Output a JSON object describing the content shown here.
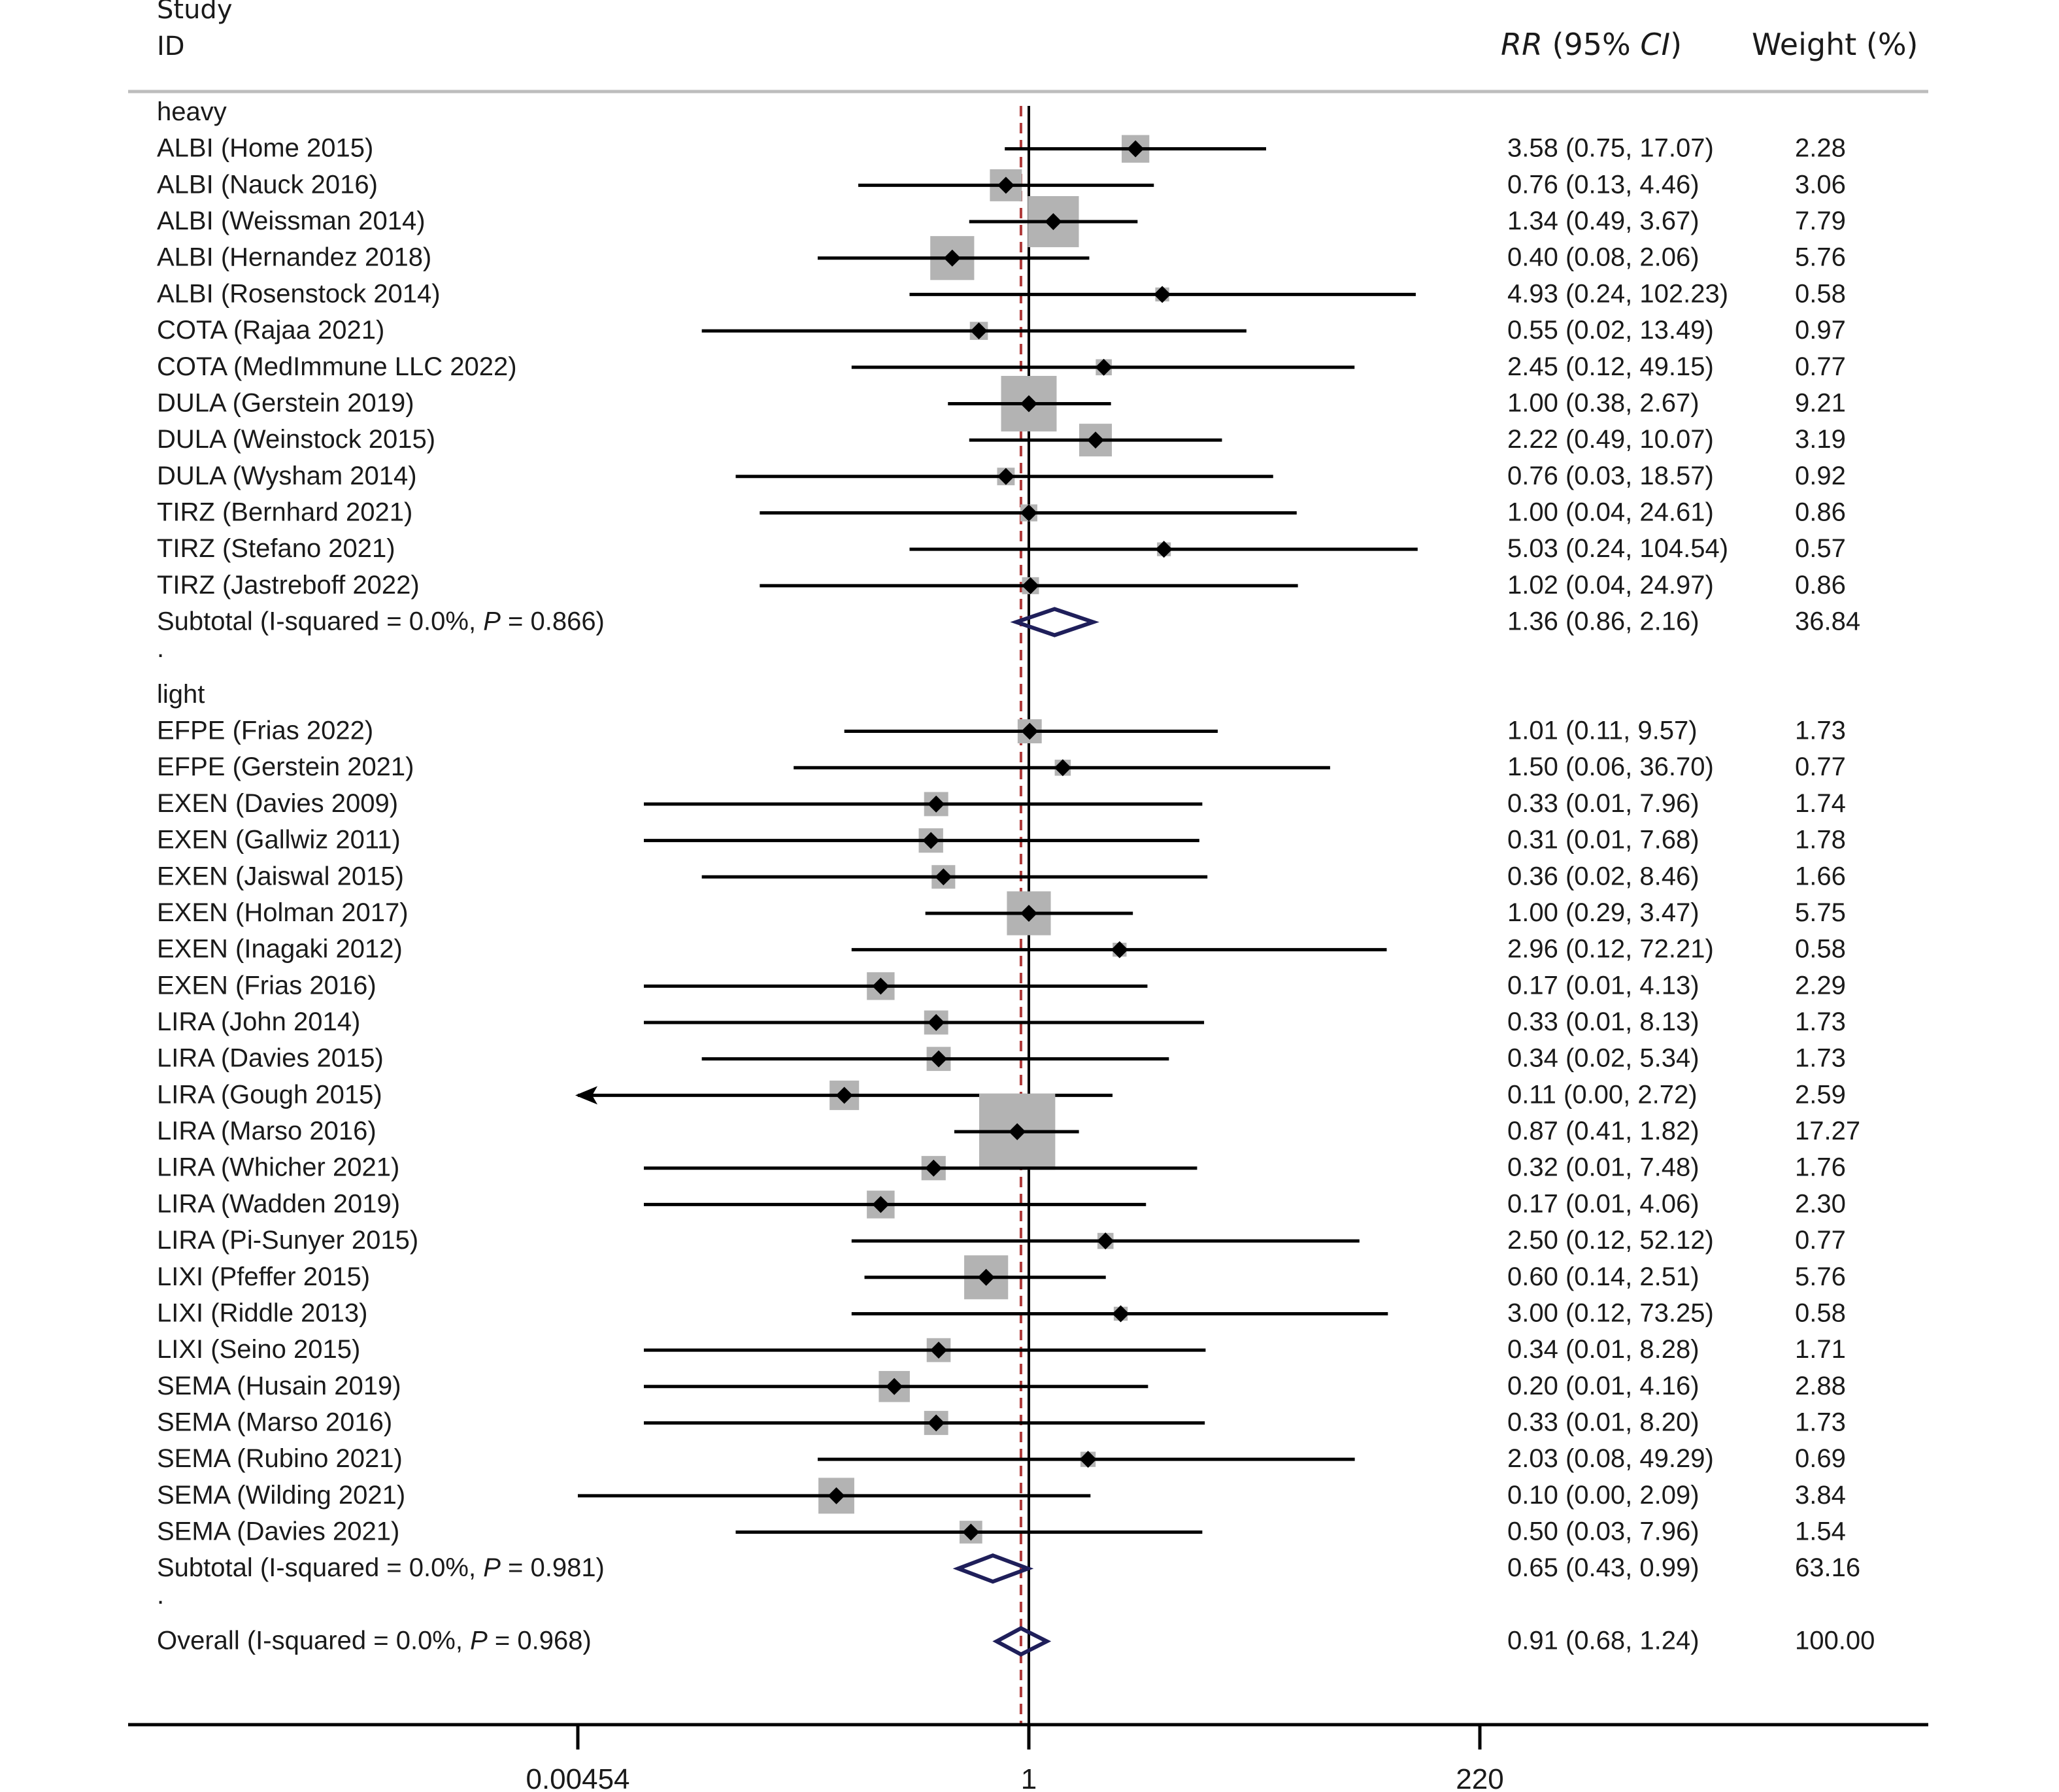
{
  "header": {
    "study": "Study",
    "id": "ID",
    "rr_label": "RR",
    "ci_open": " (95% ",
    "ci_label": "CI",
    "ci_close": ")",
    "weight_label": "Weight (%)"
  },
  "colors": {
    "box": "#b3b3b3",
    "diamond": "#1f1f5a",
    "null_line": "#000000",
    "overall_line": "#b03a3a",
    "text": "#1a1a1a"
  },
  "chart_data": {
    "type": "forest",
    "x_scale": "log",
    "xlim": [
      0.00454,
      220
    ],
    "xticks": [
      0.00454,
      1,
      220
    ],
    "xtick_labels": [
      "0.00454",
      "1",
      "220"
    ],
    "null_value": 1,
    "overall_effect": 0.91,
    "rows": [
      {
        "kind": "group",
        "label": "heavy"
      },
      {
        "kind": "study",
        "label": "ALBI (Home 2015)",
        "rr": 3.58,
        "lo": 0.75,
        "hi": 17.07,
        "ci": "3.58 (0.75, 17.07)",
        "weight": 2.28,
        "wtext": "2.28"
      },
      {
        "kind": "study",
        "label": "ALBI (Nauck 2016)",
        "rr": 0.76,
        "lo": 0.13,
        "hi": 4.46,
        "ci": "0.76 (0.13, 4.46)",
        "weight": 3.06,
        "wtext": "3.06"
      },
      {
        "kind": "study",
        "label": "ALBI (Weissman 2014)",
        "rr": 1.34,
        "lo": 0.49,
        "hi": 3.67,
        "ci": "1.34 (0.49, 3.67)",
        "weight": 7.79,
        "wtext": "7.79"
      },
      {
        "kind": "study",
        "label": "ALBI (Hernandez 2018)",
        "rr": 0.4,
        "lo": 0.08,
        "hi": 2.06,
        "ci": "0.40 (0.08, 2.06)",
        "weight": 5.76,
        "wtext": "5.76"
      },
      {
        "kind": "study",
        "label": "ALBI (Rosenstock 2014)",
        "rr": 4.93,
        "lo": 0.24,
        "hi": 102.23,
        "ci": "4.93 (0.24, 102.23)",
        "weight": 0.58,
        "wtext": "0.58"
      },
      {
        "kind": "study",
        "label": "COTA (Rajaa 2021)",
        "rr": 0.55,
        "lo": 0.02,
        "hi": 13.49,
        "ci": "0.55 (0.02, 13.49)",
        "weight": 0.97,
        "wtext": "0.97"
      },
      {
        "kind": "study",
        "label": "COTA (MedImmune LLC 2022)",
        "rr": 2.45,
        "lo": 0.12,
        "hi": 49.15,
        "ci": "2.45 (0.12, 49.15)",
        "weight": 0.77,
        "wtext": "0.77"
      },
      {
        "kind": "study",
        "label": "DULA (Gerstein 2019)",
        "rr": 1.0,
        "lo": 0.38,
        "hi": 2.67,
        "ci": "1.00 (0.38, 2.67)",
        "weight": 9.21,
        "wtext": "9.21"
      },
      {
        "kind": "study",
        "label": "DULA (Weinstock 2015)",
        "rr": 2.22,
        "lo": 0.49,
        "hi": 10.07,
        "ci": "2.22 (0.49, 10.07)",
        "weight": 3.19,
        "wtext": "3.19"
      },
      {
        "kind": "study",
        "label": "DULA (Wysham 2014)",
        "rr": 0.76,
        "lo": 0.03,
        "hi": 18.57,
        "ci": "0.76 (0.03, 18.57)",
        "weight": 0.92,
        "wtext": "0.92"
      },
      {
        "kind": "study",
        "label": "TIRZ (Bernhard 2021)",
        "rr": 1.0,
        "lo": 0.04,
        "hi": 24.61,
        "ci": "1.00 (0.04, 24.61)",
        "weight": 0.86,
        "wtext": "0.86"
      },
      {
        "kind": "study",
        "label": "TIRZ (Stefano 2021)",
        "rr": 5.03,
        "lo": 0.24,
        "hi": 104.54,
        "ci": "5.03 (0.24, 104.54)",
        "weight": 0.57,
        "wtext": "0.57"
      },
      {
        "kind": "study",
        "label": "TIRZ (Jastreboff 2022)",
        "rr": 1.02,
        "lo": 0.04,
        "hi": 24.97,
        "ci": "1.02 (0.04, 24.97)",
        "weight": 0.86,
        "wtext": "0.86"
      },
      {
        "kind": "subtotal",
        "label": "Subtotal  (I-squared = 0.0%, ",
        "pval": "P",
        "ptext": " = 0.866)",
        "rr": 1.36,
        "lo": 0.86,
        "hi": 2.16,
        "ci": "1.36 (0.86, 2.16)",
        "weight": 36.84,
        "wtext": "36.84"
      },
      {
        "kind": "sep",
        "label": "."
      },
      {
        "kind": "group",
        "label": "light"
      },
      {
        "kind": "study",
        "label": "EFPE (Frias 2022)",
        "rr": 1.01,
        "lo": 0.11,
        "hi": 9.57,
        "ci": "1.01 (0.11, 9.57)",
        "weight": 1.73,
        "wtext": "1.73"
      },
      {
        "kind": "study",
        "label": "EFPE (Gerstein 2021)",
        "rr": 1.5,
        "lo": 0.06,
        "hi": 36.7,
        "ci": "1.50 (0.06, 36.70)",
        "weight": 0.77,
        "wtext": "0.77"
      },
      {
        "kind": "study",
        "label": "EXEN (Davies 2009)",
        "rr": 0.33,
        "lo": 0.01,
        "hi": 7.96,
        "ci": "0.33 (0.01, 7.96)",
        "weight": 1.74,
        "wtext": "1.74"
      },
      {
        "kind": "study",
        "label": "EXEN (Gallwiz 2011)",
        "rr": 0.31,
        "lo": 0.01,
        "hi": 7.68,
        "ci": "0.31 (0.01, 7.68)",
        "weight": 1.78,
        "wtext": "1.78"
      },
      {
        "kind": "study",
        "label": "EXEN (Jaiswal 2015)",
        "rr": 0.36,
        "lo": 0.02,
        "hi": 8.46,
        "ci": "0.36 (0.02, 8.46)",
        "weight": 1.66,
        "wtext": "1.66"
      },
      {
        "kind": "study",
        "label": "EXEN (Holman 2017)",
        "rr": 1.0,
        "lo": 0.29,
        "hi": 3.47,
        "ci": "1.00 (0.29, 3.47)",
        "weight": 5.75,
        "wtext": "5.75"
      },
      {
        "kind": "study",
        "label": "EXEN (Inagaki 2012)",
        "rr": 2.96,
        "lo": 0.12,
        "hi": 72.21,
        "ci": "2.96 (0.12, 72.21)",
        "weight": 0.58,
        "wtext": "0.58"
      },
      {
        "kind": "study",
        "label": "EXEN (Frias 2016)",
        "rr": 0.17,
        "lo": 0.01,
        "hi": 4.13,
        "ci": "0.17 (0.01, 4.13)",
        "weight": 2.29,
        "wtext": "2.29"
      },
      {
        "kind": "study",
        "label": "LIRA (John 2014)",
        "rr": 0.33,
        "lo": 0.01,
        "hi": 8.13,
        "ci": "0.33 (0.01, 8.13)",
        "weight": 1.73,
        "wtext": "1.73"
      },
      {
        "kind": "study",
        "label": "LIRA (Davies 2015)",
        "rr": 0.34,
        "lo": 0.02,
        "hi": 5.34,
        "ci": "0.34 (0.02, 5.34)",
        "weight": 1.73,
        "wtext": "1.73"
      },
      {
        "kind": "study",
        "label": "LIRA (Gough 2015)",
        "rr": 0.11,
        "lo": 0.0,
        "hi": 2.72,
        "ci": "0.11 (0.00, 2.72)",
        "weight": 2.59,
        "wtext": "2.59",
        "arrow_left": true
      },
      {
        "kind": "study",
        "label": "LIRA (Marso 2016)",
        "rr": 0.87,
        "lo": 0.41,
        "hi": 1.82,
        "ci": "0.87 (0.41, 1.82)",
        "weight": 17.27,
        "wtext": "17.27"
      },
      {
        "kind": "study",
        "label": "LIRA (Whicher 2021)",
        "rr": 0.32,
        "lo": 0.01,
        "hi": 7.48,
        "ci": "0.32 (0.01, 7.48)",
        "weight": 1.76,
        "wtext": "1.76"
      },
      {
        "kind": "study",
        "label": "LIRA (Wadden 2019)",
        "rr": 0.17,
        "lo": 0.01,
        "hi": 4.06,
        "ci": "0.17 (0.01, 4.06)",
        "weight": 2.3,
        "wtext": "2.30"
      },
      {
        "kind": "study",
        "label": "LIRA (Pi-Sunyer 2015)",
        "rr": 2.5,
        "lo": 0.12,
        "hi": 52.12,
        "ci": "2.50 (0.12, 52.12)",
        "weight": 0.77,
        "wtext": "0.77"
      },
      {
        "kind": "study",
        "label": "LIXI (Pfeffer 2015)",
        "rr": 0.6,
        "lo": 0.14,
        "hi": 2.51,
        "ci": "0.60 (0.14, 2.51)",
        "weight": 5.76,
        "wtext": "5.76"
      },
      {
        "kind": "study",
        "label": "LIXI (Riddle 2013)",
        "rr": 3.0,
        "lo": 0.12,
        "hi": 73.25,
        "ci": "3.00 (0.12, 73.25)",
        "weight": 0.58,
        "wtext": "0.58"
      },
      {
        "kind": "study",
        "label": "LIXI (Seino 2015)",
        "rr": 0.34,
        "lo": 0.01,
        "hi": 8.28,
        "ci": "0.34 (0.01, 8.28)",
        "weight": 1.71,
        "wtext": "1.71"
      },
      {
        "kind": "study",
        "label": "SEMA (Husain 2019)",
        "rr": 0.2,
        "lo": 0.01,
        "hi": 4.16,
        "ci": "0.20 (0.01, 4.16)",
        "weight": 2.88,
        "wtext": "2.88"
      },
      {
        "kind": "study",
        "label": "SEMA (Marso 2016)",
        "rr": 0.33,
        "lo": 0.01,
        "hi": 8.2,
        "ci": "0.33 (0.01, 8.20)",
        "weight": 1.73,
        "wtext": "1.73"
      },
      {
        "kind": "study",
        "label": "SEMA (Rubino 2021)",
        "rr": 2.03,
        "lo": 0.08,
        "hi": 49.29,
        "ci": "2.03 (0.08, 49.29)",
        "weight": 0.69,
        "wtext": "0.69"
      },
      {
        "kind": "study",
        "label": "SEMA (Wilding 2021)",
        "rr": 0.1,
        "lo": 0.0,
        "hi": 2.09,
        "ci": "0.10 (0.00, 2.09)",
        "weight": 3.84,
        "wtext": "3.84"
      },
      {
        "kind": "study",
        "label": "SEMA (Davies 2021)",
        "rr": 0.5,
        "lo": 0.03,
        "hi": 7.96,
        "ci": "0.50 (0.03, 7.96)",
        "weight": 1.54,
        "wtext": "1.54"
      },
      {
        "kind": "subtotal",
        "label": "Subtotal  (I-squared = 0.0%, ",
        "pval": "P",
        "ptext": " = 0.981)",
        "rr": 0.65,
        "lo": 0.43,
        "hi": 0.99,
        "ci": "0.65 (0.43, 0.99)",
        "weight": 63.16,
        "wtext": "63.16"
      },
      {
        "kind": "sep",
        "label": "."
      },
      {
        "kind": "overall",
        "label": "Overall  (I-squared = 0.0%, ",
        "pval": "P",
        "ptext": " = 0.968)",
        "rr": 0.91,
        "lo": 0.68,
        "hi": 1.24,
        "ci": "0.91 (0.68, 1.24)",
        "weight": 100.0,
        "wtext": "100.00"
      }
    ]
  }
}
